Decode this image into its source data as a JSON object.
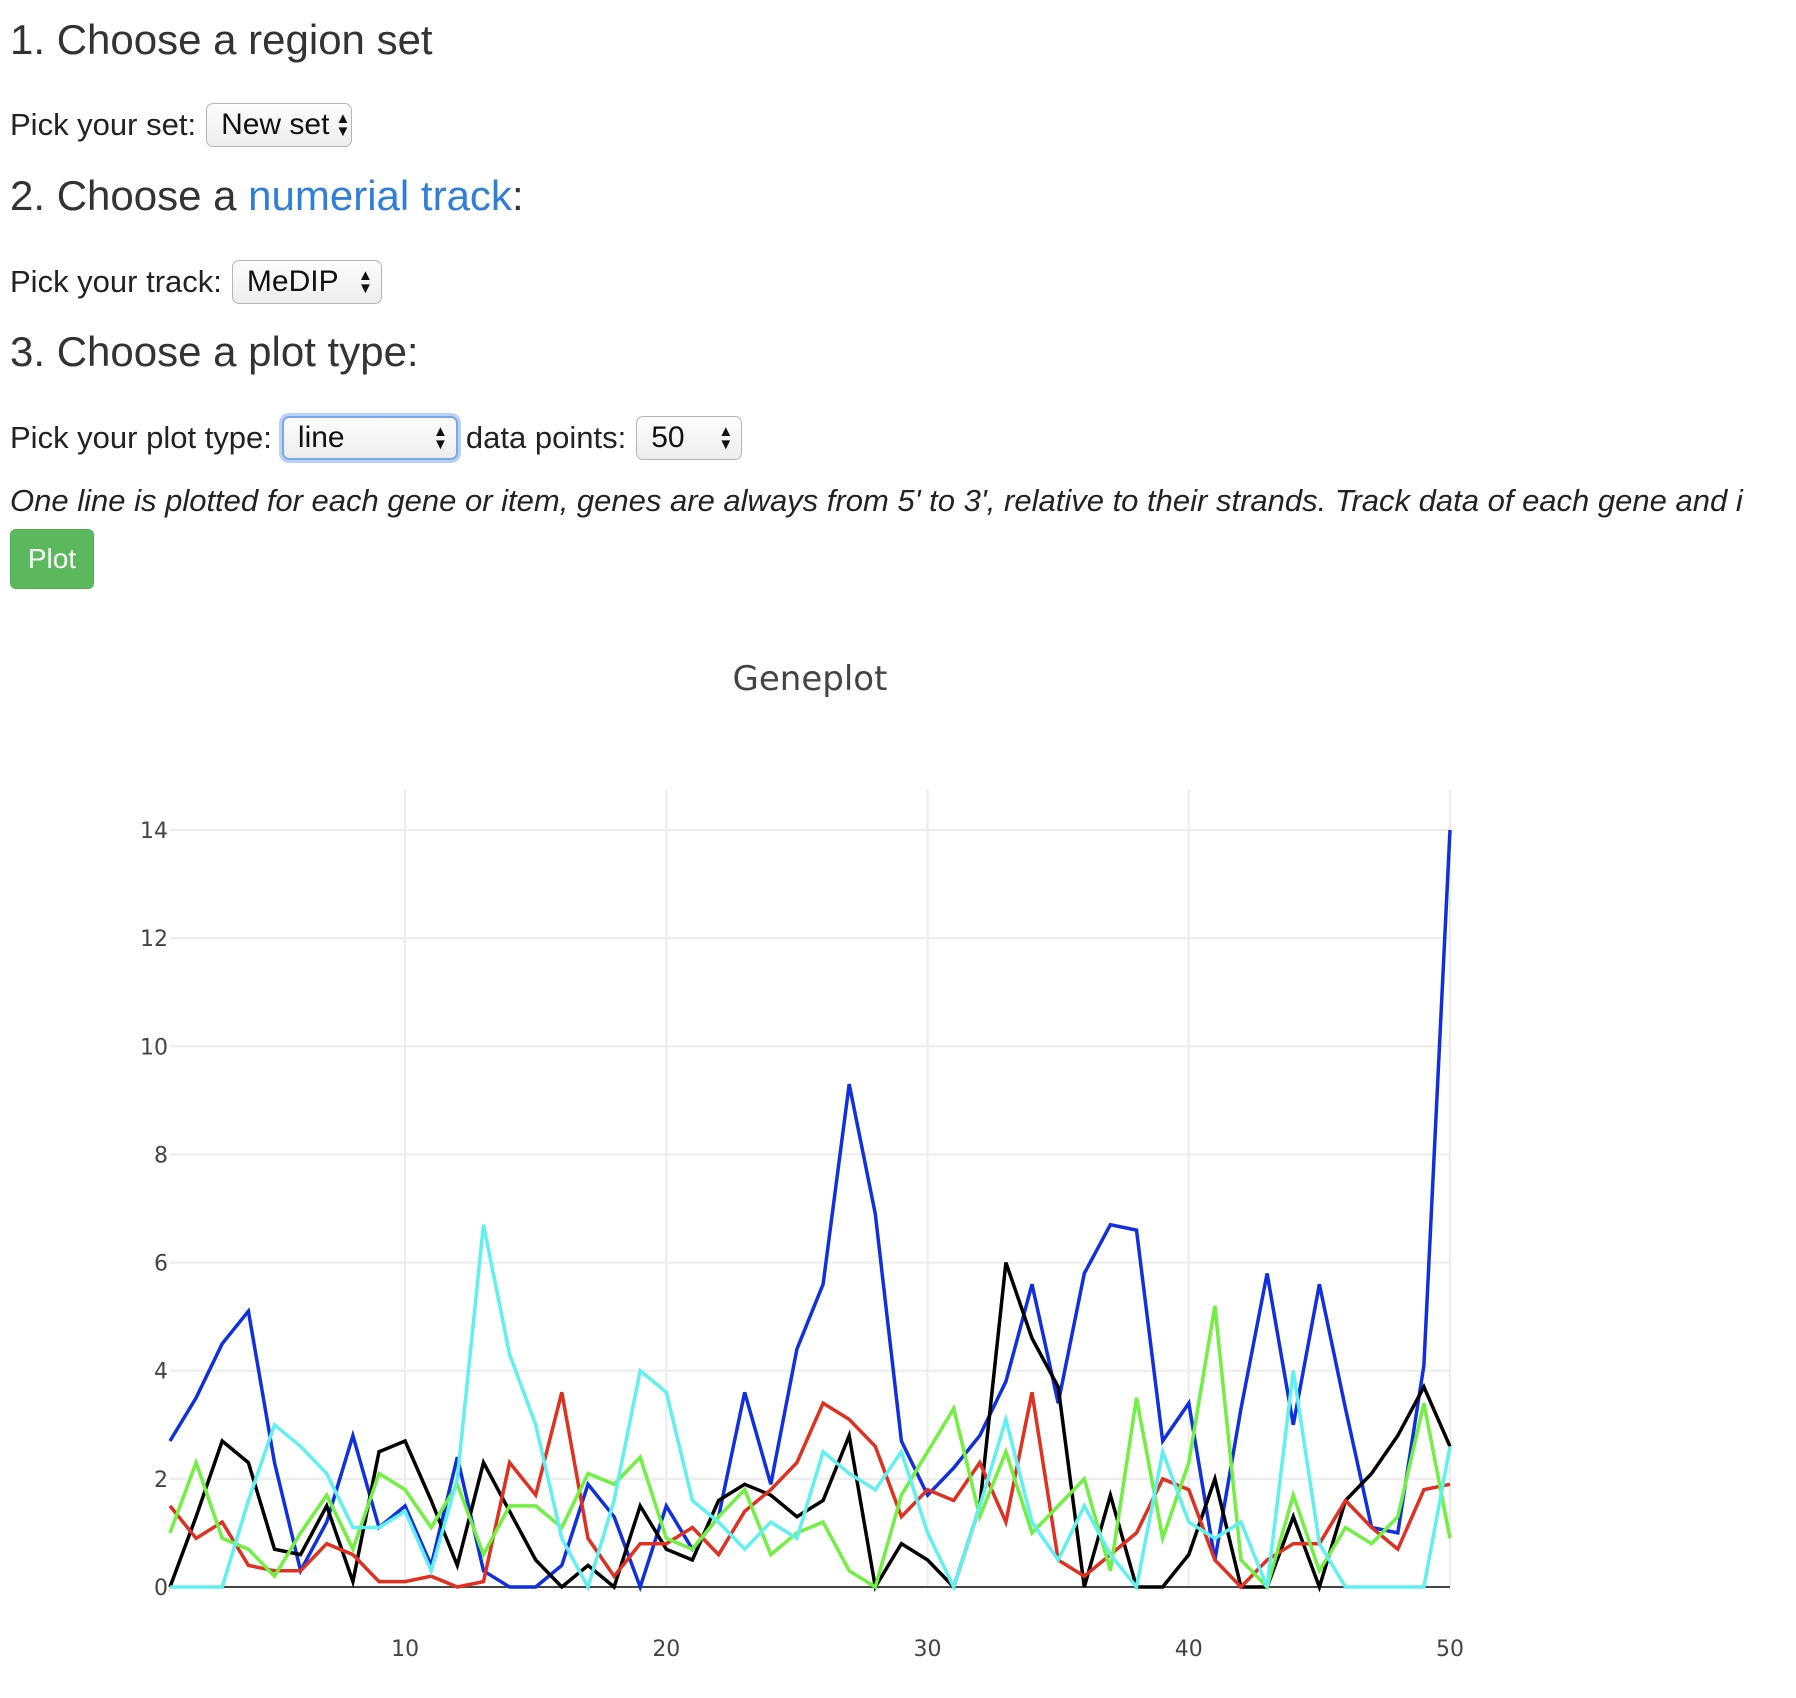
{
  "section1": {
    "heading": "1. Choose a region set",
    "label": "Pick your set:",
    "value": "New set"
  },
  "section2": {
    "heading_prefix": "2. Choose a ",
    "heading_link": "numerial track",
    "heading_suffix": ":",
    "label": "Pick your track:",
    "value": "MeDIP"
  },
  "section3": {
    "heading": "3. Choose a plot type:",
    "label": "Pick your plot type:",
    "value": "line",
    "points_label": "data points:",
    "points_value": "50"
  },
  "note": "One line is plotted for each gene or item, genes are always from 5' to 3', relative to their strands. Track data of each gene and i",
  "plot_button": "Plot",
  "chart_data": {
    "type": "line",
    "title": "Geneplot",
    "xlim": [
      1,
      50
    ],
    "ylim": [
      0,
      14
    ],
    "xticks": [
      10,
      20,
      30,
      40,
      50
    ],
    "yticks": [
      0,
      2,
      4,
      6,
      8,
      10,
      12,
      14
    ],
    "x": [
      1,
      2,
      3,
      4,
      5,
      6,
      7,
      8,
      9,
      10,
      11,
      12,
      13,
      14,
      15,
      16,
      17,
      18,
      19,
      20,
      21,
      22,
      23,
      24,
      25,
      26,
      27,
      28,
      29,
      30,
      31,
      32,
      33,
      34,
      35,
      36,
      37,
      38,
      39,
      40,
      41,
      42,
      43,
      44,
      45,
      46,
      47,
      48,
      49,
      50
    ],
    "grid": true,
    "series": [
      {
        "color": "#1030e0",
        "values": [
          2.7,
          3.5,
          4.5,
          5.1,
          2.3,
          0.3,
          1.2,
          2.8,
          1.1,
          1.5,
          0.4,
          2.4,
          0.3,
          0,
          0,
          0.4,
          1.9,
          1.3,
          0,
          1.5,
          0.7,
          1.3,
          3.6,
          1.9,
          4.4,
          5.6,
          9.3,
          6.9,
          2.7,
          1.7,
          2.2,
          2.8,
          3.8,
          5.6,
          3.4,
          5.8,
          6.7,
          6.6,
          2.7,
          3.4,
          0.5,
          3.3,
          5.8,
          3.0,
          5.6,
          3.3,
          1.1,
          1.0,
          4.1,
          14.0
        ]
      },
      {
        "color": "#000000",
        "values": [
          0,
          1.3,
          2.7,
          2.3,
          0.7,
          0.6,
          1.5,
          0.1,
          2.5,
          2.7,
          1.6,
          0.4,
          2.3,
          1.4,
          0.5,
          0,
          0.4,
          0,
          1.5,
          0.7,
          0.5,
          1.6,
          1.9,
          1.7,
          1.3,
          1.6,
          2.8,
          0,
          0.8,
          0.5,
          0,
          1.5,
          6.0,
          4.6,
          3.7,
          0,
          1.7,
          0,
          0,
          0.6,
          2.0,
          0,
          0,
          1.3,
          0,
          1.6,
          2.1,
          2.8,
          3.7,
          2.6
        ]
      },
      {
        "color": "#e03020",
        "values": [
          1.5,
          0.9,
          1.2,
          0.4,
          0.3,
          0.3,
          0.8,
          0.6,
          0.1,
          0.1,
          0.2,
          0,
          0.1,
          2.3,
          1.7,
          3.6,
          0.9,
          0.2,
          0.8,
          0.8,
          1.1,
          0.6,
          1.4,
          1.8,
          2.3,
          3.4,
          3.1,
          2.6,
          1.3,
          1.8,
          1.6,
          2.3,
          1.2,
          3.6,
          0.5,
          0.2,
          0.6,
          1.0,
          2.0,
          1.8,
          0.5,
          0,
          0.5,
          0.8,
          0.8,
          1.6,
          1.1,
          0.7,
          1.8,
          1.9
        ]
      },
      {
        "color": "#70f040",
        "values": [
          1.0,
          2.3,
          0.9,
          0.7,
          0.2,
          1.0,
          1.7,
          0.7,
          2.1,
          1.8,
          1.1,
          1.9,
          0.6,
          1.5,
          1.5,
          1.1,
          2.1,
          1.9,
          2.4,
          0.9,
          0.7,
          1.3,
          1.8,
          0.6,
          1.0,
          1.2,
          0.3,
          0,
          1.7,
          2.5,
          3.3,
          1.3,
          2.5,
          1.0,
          1.5,
          2.0,
          0.3,
          3.5,
          0.9,
          2.3,
          5.2,
          0.5,
          0,
          1.7,
          0.3,
          1.1,
          0.8,
          1.3,
          3.4,
          0.9
        ]
      },
      {
        "color": "#60f0f0",
        "values": [
          0,
          0,
          0,
          1.6,
          3.0,
          2.6,
          2.1,
          1.1,
          1.1,
          1.4,
          0.3,
          2.0,
          6.7,
          4.3,
          3.0,
          0.9,
          0,
          1.6,
          4.0,
          3.6,
          1.6,
          1.2,
          0.7,
          1.2,
          0.9,
          2.5,
          2.1,
          1.8,
          2.5,
          1.0,
          0,
          1.5,
          3.1,
          1.2,
          0.5,
          1.5,
          0.6,
          0,
          2.5,
          1.2,
          0.9,
          1.2,
          0,
          4.0,
          0.8,
          0,
          0,
          0,
          0,
          2.6
        ]
      }
    ]
  }
}
